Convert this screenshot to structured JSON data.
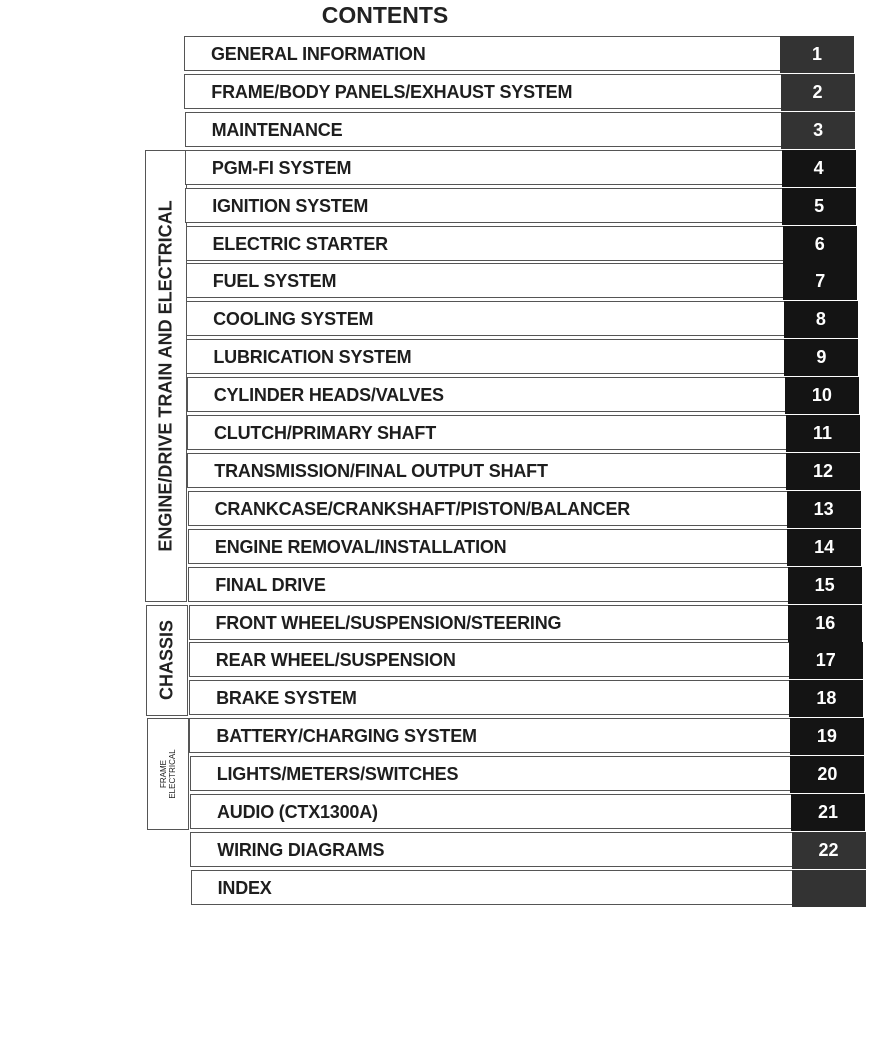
{
  "title": "CONTENTS",
  "groups": [
    {
      "label": "ENGINE/DRIVE TRAIN AND ELECTRICAL",
      "from": 4,
      "to": 15
    },
    {
      "label": "CHASSIS",
      "from": 16,
      "to": 18
    },
    {
      "label": "FRAME ELECTRICAL",
      "line1": "FRAME",
      "line2": "ELECTRICAL",
      "from": 19,
      "to": 21
    }
  ],
  "sections": [
    {
      "label": "GENERAL INFORMATION",
      "number": "1"
    },
    {
      "label": "FRAME/BODY PANELS/EXHAUST SYSTEM",
      "number": "2"
    },
    {
      "label": "MAINTENANCE",
      "number": "3"
    },
    {
      "label": "PGM-FI SYSTEM",
      "number": "4"
    },
    {
      "label": "IGNITION SYSTEM",
      "number": "5"
    },
    {
      "label": "ELECTRIC STARTER",
      "number": "6"
    },
    {
      "label": "FUEL SYSTEM",
      "number": "7"
    },
    {
      "label": "COOLING SYSTEM",
      "number": "8"
    },
    {
      "label": "LUBRICATION SYSTEM",
      "number": "9"
    },
    {
      "label": "CYLINDER HEADS/VALVES",
      "number": "10"
    },
    {
      "label": "CLUTCH/PRIMARY SHAFT",
      "number": "11"
    },
    {
      "label": "TRANSMISSION/FINAL OUTPUT SHAFT",
      "number": "12"
    },
    {
      "label": "CRANKCASE/CRANKSHAFT/PISTON/BALANCER",
      "number": "13"
    },
    {
      "label": "ENGINE REMOVAL/INSTALLATION",
      "number": "14"
    },
    {
      "label": "FINAL DRIVE",
      "number": "15"
    },
    {
      "label": "FRONT WHEEL/SUSPENSION/STEERING",
      "number": "16"
    },
    {
      "label": "REAR WHEEL/SUSPENSION",
      "number": "17"
    },
    {
      "label": "BRAKE SYSTEM",
      "number": "18"
    },
    {
      "label": "BATTERY/CHARGING SYSTEM",
      "number": "19"
    },
    {
      "label": "LIGHTS/METERS/SWITCHES",
      "number": "20"
    },
    {
      "label": "AUDIO (CTX1300A)",
      "number": "21"
    },
    {
      "label": "WIRING DIAGRAMS",
      "number": "22"
    },
    {
      "label": "INDEX",
      "number": ""
    }
  ],
  "colors": {
    "tab_dark": "#141414",
    "tab_gray": "#333333"
  }
}
